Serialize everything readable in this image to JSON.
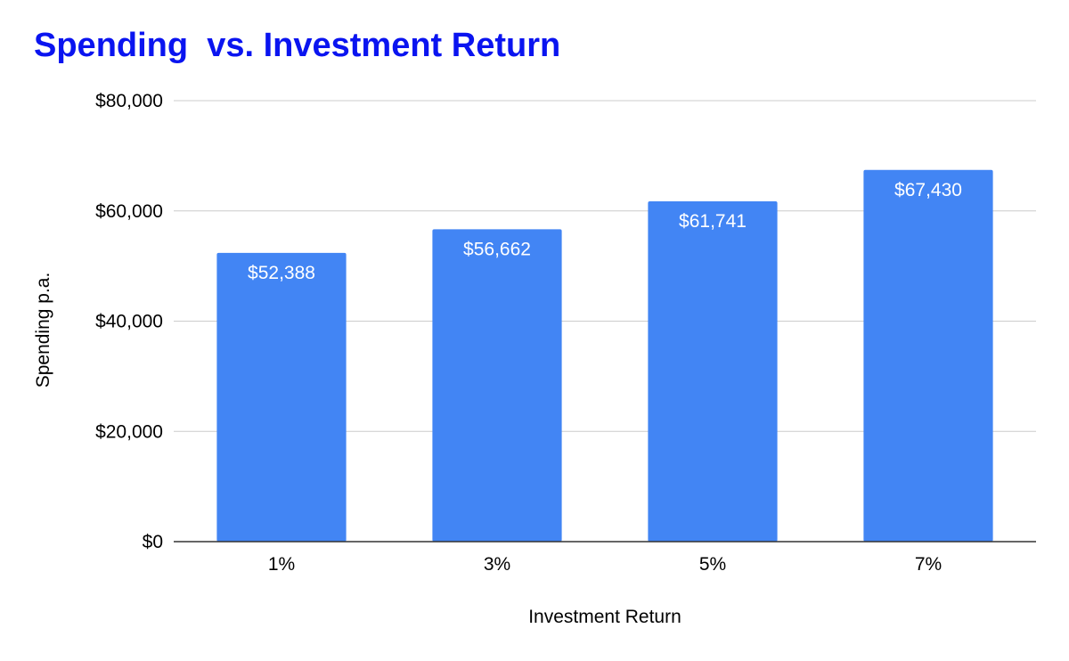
{
  "chart_data": {
    "type": "bar",
    "title": "Spending  vs. Investment Return",
    "xlabel": "Investment Return",
    "ylabel": "Spending p.a.",
    "categories": [
      "1%",
      "3%",
      "5%",
      "7%"
    ],
    "values": [
      52388,
      56662,
      61741,
      67430
    ],
    "data_labels": [
      "$52,388",
      "$56,662",
      "$61,741",
      "$67,430"
    ],
    "ylim": [
      0,
      80000
    ],
    "yticks": [
      0,
      20000,
      40000,
      60000,
      80000
    ],
    "ytick_labels": [
      "$0",
      "$20,000",
      "$40,000",
      "$60,000",
      "$80,000"
    ],
    "grid": true,
    "legend": "none",
    "colors": {
      "bar": "#4285f4",
      "title": "#0a14f0",
      "grid": "#cccccc",
      "axis": "#333333"
    }
  }
}
